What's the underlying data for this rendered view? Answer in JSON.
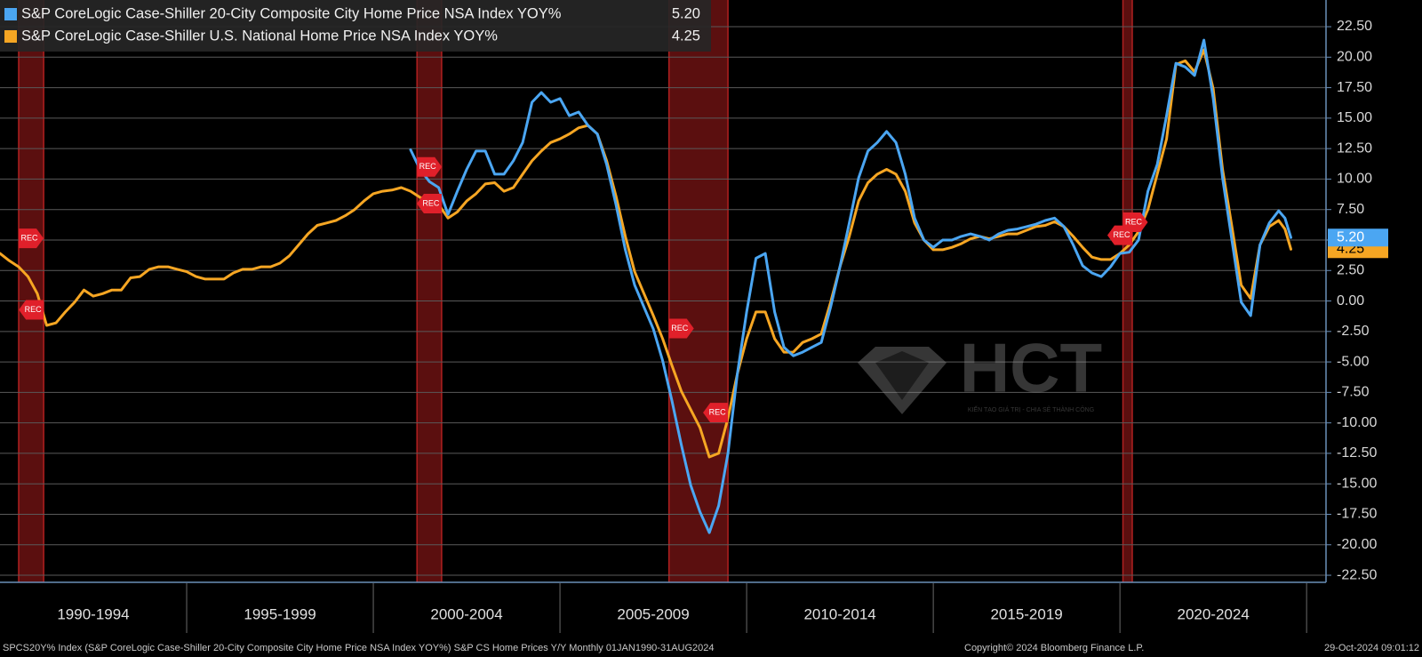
{
  "chart_data": {
    "type": "line",
    "x": [
      1990,
      1990.25,
      1990.5,
      1990.75,
      1991,
      1991.25,
      1991.5,
      1991.75,
      1992,
      1992.25,
      1992.5,
      1992.75,
      1993,
      1993.25,
      1993.5,
      1993.75,
      1994,
      1994.25,
      1994.5,
      1994.75,
      1995,
      1995.25,
      1995.5,
      1995.75,
      1996,
      1996.25,
      1996.5,
      1996.75,
      1997,
      1997.25,
      1997.5,
      1997.75,
      1998,
      1998.25,
      1998.5,
      1998.75,
      1999,
      1999.25,
      1999.5,
      1999.75,
      2000,
      2000.25,
      2000.5,
      2000.75,
      2001,
      2001.25,
      2001.5,
      2001.75,
      2002,
      2002.25,
      2002.5,
      2002.75,
      2003,
      2003.25,
      2003.5,
      2003.75,
      2004,
      2004.25,
      2004.5,
      2004.75,
      2005,
      2005.25,
      2005.5,
      2005.75,
      2006,
      2006.25,
      2006.5,
      2006.75,
      2007,
      2007.25,
      2007.5,
      2007.75,
      2008,
      2008.25,
      2008.5,
      2008.75,
      2009,
      2009.25,
      2009.5,
      2009.75,
      2010,
      2010.25,
      2010.5,
      2010.75,
      2011,
      2011.25,
      2011.5,
      2011.75,
      2012,
      2012.25,
      2012.5,
      2012.75,
      2013,
      2013.25,
      2013.5,
      2013.75,
      2014,
      2014.25,
      2014.5,
      2014.75,
      2015,
      2015.25,
      2015.5,
      2015.75,
      2016,
      2016.25,
      2016.5,
      2016.75,
      2017,
      2017.25,
      2017.5,
      2017.75,
      2018,
      2018.25,
      2018.5,
      2018.75,
      2019,
      2019.25,
      2019.5,
      2019.75,
      2020,
      2020.25,
      2020.5,
      2020.75,
      2021,
      2021.25,
      2021.5,
      2021.75,
      2022,
      2022.25,
      2022.5,
      2022.75,
      2023,
      2023.25,
      2023.5,
      2023.75,
      2024,
      2024.25,
      2024.42,
      2024.58
    ],
    "series": [
      {
        "name": "S&P CoreLogic Case-Shiller 20-City Composite City Home Price NSA Index YOY%",
        "color": "#4ba6f2",
        "last_value": 5.2,
        "last_value_label": "5.20",
        "values": [
          null,
          null,
          null,
          null,
          null,
          null,
          null,
          null,
          null,
          null,
          null,
          null,
          null,
          null,
          null,
          null,
          null,
          null,
          null,
          null,
          null,
          null,
          null,
          null,
          null,
          null,
          null,
          null,
          null,
          null,
          null,
          null,
          null,
          null,
          null,
          null,
          null,
          null,
          null,
          null,
          null,
          null,
          null,
          null,
          12.4,
          10.8,
          9.8,
          9.3,
          7.1,
          9.0,
          10.8,
          12.3,
          12.3,
          10.4,
          10.4,
          11.5,
          13.0,
          16.3,
          17.1,
          16.3,
          16.6,
          15.2,
          15.5,
          14.4,
          13.7,
          11.2,
          7.9,
          4.2,
          1.3,
          -0.5,
          -2.3,
          -4.9,
          -8.2,
          -11.8,
          -15.1,
          -17.3,
          -19.0,
          -16.8,
          -12.5,
          -6.0,
          -0.9,
          3.5,
          3.9,
          -0.9,
          -3.8,
          -4.5,
          -4.2,
          -3.8,
          -3.4,
          -0.5,
          2.8,
          6.4,
          10.1,
          12.3,
          13.0,
          13.9,
          13.0,
          10.4,
          6.8,
          5.0,
          4.4,
          5.0,
          5.0,
          5.3,
          5.5,
          5.3,
          5.0,
          5.5,
          5.8,
          5.9,
          6.1,
          6.3,
          6.6,
          6.8,
          6.1,
          4.6,
          2.9,
          2.3,
          2.0,
          2.8,
          3.9,
          4.0,
          5.0,
          9.0,
          11.2,
          15.2,
          19.5,
          19.2,
          18.5,
          21.4,
          16.6,
          10.1,
          5.0,
          -0.1,
          -1.2,
          4.6,
          6.4,
          7.4,
          6.8,
          5.2
        ]
      },
      {
        "name": "S&P CoreLogic Case-Shiller U.S. National Home Price NSA Index YOY%",
        "color": "#f6a623",
        "last_value": 4.25,
        "last_value_label": "4.25",
        "values": [
          3.9,
          3.3,
          2.8,
          2.0,
          0.6,
          -2.0,
          -1.8,
          -0.9,
          -0.1,
          0.9,
          0.4,
          0.6,
          0.9,
          0.9,
          1.9,
          2.0,
          2.6,
          2.8,
          2.8,
          2.6,
          2.4,
          2.0,
          1.8,
          1.8,
          1.8,
          2.3,
          2.6,
          2.6,
          2.8,
          2.8,
          3.1,
          3.7,
          4.6,
          5.5,
          6.2,
          6.4,
          6.6,
          7.0,
          7.5,
          8.2,
          8.8,
          9.0,
          9.1,
          9.3,
          9.0,
          8.5,
          8.1,
          7.9,
          6.8,
          7.3,
          8.2,
          8.8,
          9.6,
          9.7,
          9.0,
          9.3,
          10.4,
          11.5,
          12.3,
          13.0,
          13.3,
          13.7,
          14.2,
          14.4,
          13.7,
          11.5,
          8.6,
          5.3,
          2.4,
          0.6,
          -1.2,
          -3.1,
          -5.3,
          -7.4,
          -8.9,
          -10.4,
          -12.8,
          -12.5,
          -9.6,
          -6.0,
          -3.1,
          -0.9,
          -0.9,
          -3.1,
          -4.2,
          -4.2,
          -3.4,
          -3.1,
          -2.7,
          -0.1,
          2.8,
          5.3,
          8.2,
          9.7,
          10.4,
          10.8,
          10.4,
          9.0,
          6.4,
          5.0,
          4.2,
          4.2,
          4.4,
          4.7,
          5.1,
          5.3,
          5.1,
          5.3,
          5.5,
          5.5,
          5.8,
          6.1,
          6.2,
          6.5,
          6.1,
          5.3,
          4.4,
          3.6,
          3.4,
          3.4,
          3.9,
          4.6,
          5.7,
          7.5,
          10.4,
          13.3,
          19.4,
          19.7,
          18.8,
          20.6,
          17.4,
          10.8,
          6.1,
          1.3,
          0.2,
          4.6,
          6.1,
          6.6,
          5.9,
          4.25
        ]
      }
    ],
    "xlim": [
      1990,
      2025.52
    ],
    "xticks": [
      {
        "value": 1992.5,
        "label": "1990-1994"
      },
      {
        "value": 1997.5,
        "label": "1995-1999"
      },
      {
        "value": 2002.5,
        "label": "2000-2004"
      },
      {
        "value": 2007.5,
        "label": "2005-2009"
      },
      {
        "value": 2012.5,
        "label": "2010-2014"
      },
      {
        "value": 2017.5,
        "label": "2015-2019"
      },
      {
        "value": 2022.5,
        "label": "2020-2024"
      }
    ],
    "ylim": [
      -23.08,
      24.69
    ],
    "yticks": [
      {
        "value": 22.5,
        "label": "22.50"
      },
      {
        "value": 20,
        "label": "20.00"
      },
      {
        "value": 17.5,
        "label": "17.50"
      },
      {
        "value": 15,
        "label": "15.00"
      },
      {
        "value": 12.5,
        "label": "12.50"
      },
      {
        "value": 10,
        "label": "10.00"
      },
      {
        "value": 7.5,
        "label": "7.50"
      },
      {
        "value": 5,
        "label": "5.00"
      },
      {
        "value": 2.5,
        "label": "2.50"
      },
      {
        "value": 0,
        "label": "0.00"
      },
      {
        "value": -2.5,
        "label": "-2.50"
      },
      {
        "value": -5,
        "label": "-5.00"
      },
      {
        "value": -7.5,
        "label": "-7.50"
      },
      {
        "value": -10,
        "label": "-10.00"
      },
      {
        "value": -12.5,
        "label": "-12.50"
      },
      {
        "value": -15,
        "label": "-15.00"
      },
      {
        "value": -17.5,
        "label": "-17.50"
      },
      {
        "value": -20,
        "label": "-20.00"
      },
      {
        "value": -22.5,
        "label": "-22.50"
      }
    ],
    "grid": true,
    "legend": "top-left",
    "recessions": [
      [
        1990.5,
        1991.17
      ],
      [
        2001.17,
        2001.83
      ],
      [
        2007.92,
        2009.5
      ],
      [
        2020.08,
        2020.33
      ]
    ],
    "recession_color": "#7a1414",
    "recession_label": "REC"
  },
  "watermark": {
    "text": "HCT",
    "tagline": "KIẾN TẠO GIÁ TRỊ - CHIA SẺ THÀNH CÔNG"
  },
  "footer": {
    "source": "SPCS20Y% Index (S&P CoreLogic Case-Shiller 20-City Composite City Home Price NSA Index YOY%) S&P CS Home Prices Y/Y  Monthly 01JAN1990-31AUG2024",
    "copyright": "Copyright© 2024 Bloomberg Finance L.P.",
    "timestamp": "29-Oct-2024 09:01:12"
  }
}
